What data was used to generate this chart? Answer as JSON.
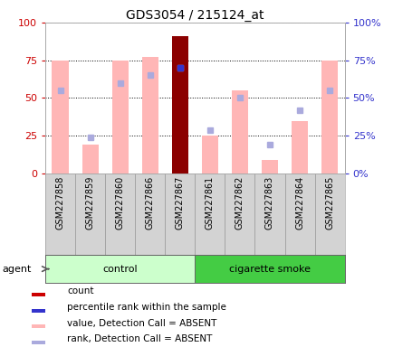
{
  "title": "GDS3054 / 215124_at",
  "samples": [
    "GSM227858",
    "GSM227859",
    "GSM227860",
    "GSM227866",
    "GSM227867",
    "GSM227861",
    "GSM227862",
    "GSM227863",
    "GSM227864",
    "GSM227865"
  ],
  "groups": [
    "control",
    "control",
    "control",
    "control",
    "control",
    "cigarette smoke",
    "cigarette smoke",
    "cigarette smoke",
    "cigarette smoke",
    "cigarette smoke"
  ],
  "bar_values_pink": [
    75,
    19,
    75,
    77,
    0,
    25,
    55,
    9,
    35,
    75
  ],
  "bar_values_dark": [
    0,
    0,
    0,
    0,
    91,
    0,
    0,
    0,
    0,
    0
  ],
  "dark_bar_color": "#8B0000",
  "pink_bar_color": "#FFB6B6",
  "rank_dots_blue": [
    55,
    24,
    60,
    65,
    70,
    29,
    50,
    19,
    42,
    55
  ],
  "rank_dot_absent_color": "#AAAADD",
  "percentile_dot_color": "#3333CC",
  "percentile_dots": [
    null,
    null,
    null,
    null,
    70,
    null,
    null,
    null,
    null,
    null
  ],
  "ylim": [
    0,
    100
  ],
  "yticks": [
    0,
    25,
    50,
    75,
    100
  ],
  "group_colors_left": "#CCFFCC",
  "group_colors_right": "#44CC44",
  "background_color": "#FFFFFF",
  "plot_bg_color": "#FFFFFF",
  "tick_label_color_left": "#CC0000",
  "tick_label_color_right": "#3333CC",
  "sample_box_color": "#D3D3D3",
  "sample_box_edge": "#999999",
  "legend_items": [
    {
      "color": "#CC0000",
      "label": "count"
    },
    {
      "color": "#3333CC",
      "label": "percentile rank within the sample"
    },
    {
      "color": "#FFB6B6",
      "label": "value, Detection Call = ABSENT"
    },
    {
      "color": "#AAAADD",
      "label": "rank, Detection Call = ABSENT"
    }
  ]
}
